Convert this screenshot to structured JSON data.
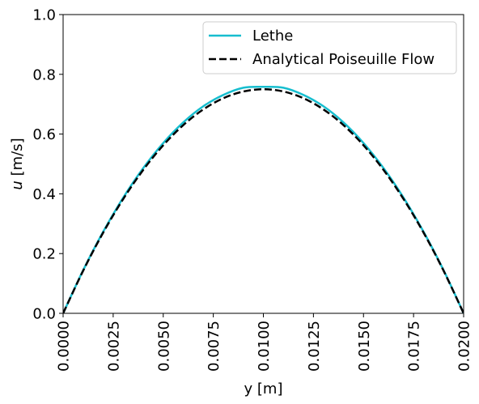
{
  "chart_data": {
    "type": "line",
    "xlabel": "y [m]",
    "ylabel_var": "u",
    "ylabel_unit": " [m/s]",
    "xlim": [
      0.0,
      0.02
    ],
    "ylim": [
      0.0,
      1.0
    ],
    "xticks": [
      0.0,
      0.0025,
      0.005,
      0.0075,
      0.01,
      0.0125,
      0.015,
      0.0175,
      0.02
    ],
    "xtick_labels": [
      "0.0000",
      "0.0025",
      "0.0050",
      "0.0075",
      "0.0100",
      "0.0125",
      "0.0150",
      "0.0175",
      "0.0200"
    ],
    "yticks": [
      0.0,
      0.2,
      0.4,
      0.6,
      0.8,
      1.0
    ],
    "ytick_labels": [
      "0.0",
      "0.2",
      "0.4",
      "0.6",
      "0.8",
      "1.0"
    ],
    "grid": false,
    "legend_position": "top-right",
    "x": [
      0.0,
      0.001,
      0.002,
      0.003,
      0.004,
      0.005,
      0.006,
      0.007,
      0.008,
      0.009,
      0.01,
      0.011,
      0.012,
      0.013,
      0.014,
      0.015,
      0.016,
      0.017,
      0.018,
      0.019,
      0.02
    ],
    "series": [
      {
        "name": "Lethe",
        "color": "#17becf",
        "style": "solid",
        "values": [
          0.0,
          0.144,
          0.273,
          0.387,
          0.486,
          0.57,
          0.639,
          0.693,
          0.731,
          0.755,
          0.758,
          0.755,
          0.731,
          0.693,
          0.639,
          0.57,
          0.486,
          0.387,
          0.273,
          0.144,
          0.0
        ]
      },
      {
        "name": "Analytical Poiseuille Flow",
        "color": "#000000",
        "style": "dashed",
        "values": [
          0.0,
          0.1425,
          0.27,
          0.3825,
          0.48,
          0.5625,
          0.63,
          0.6825,
          0.72,
          0.7425,
          0.75,
          0.7425,
          0.72,
          0.6825,
          0.63,
          0.5625,
          0.48,
          0.3825,
          0.27,
          0.1425,
          0.0
        ]
      }
    ]
  }
}
